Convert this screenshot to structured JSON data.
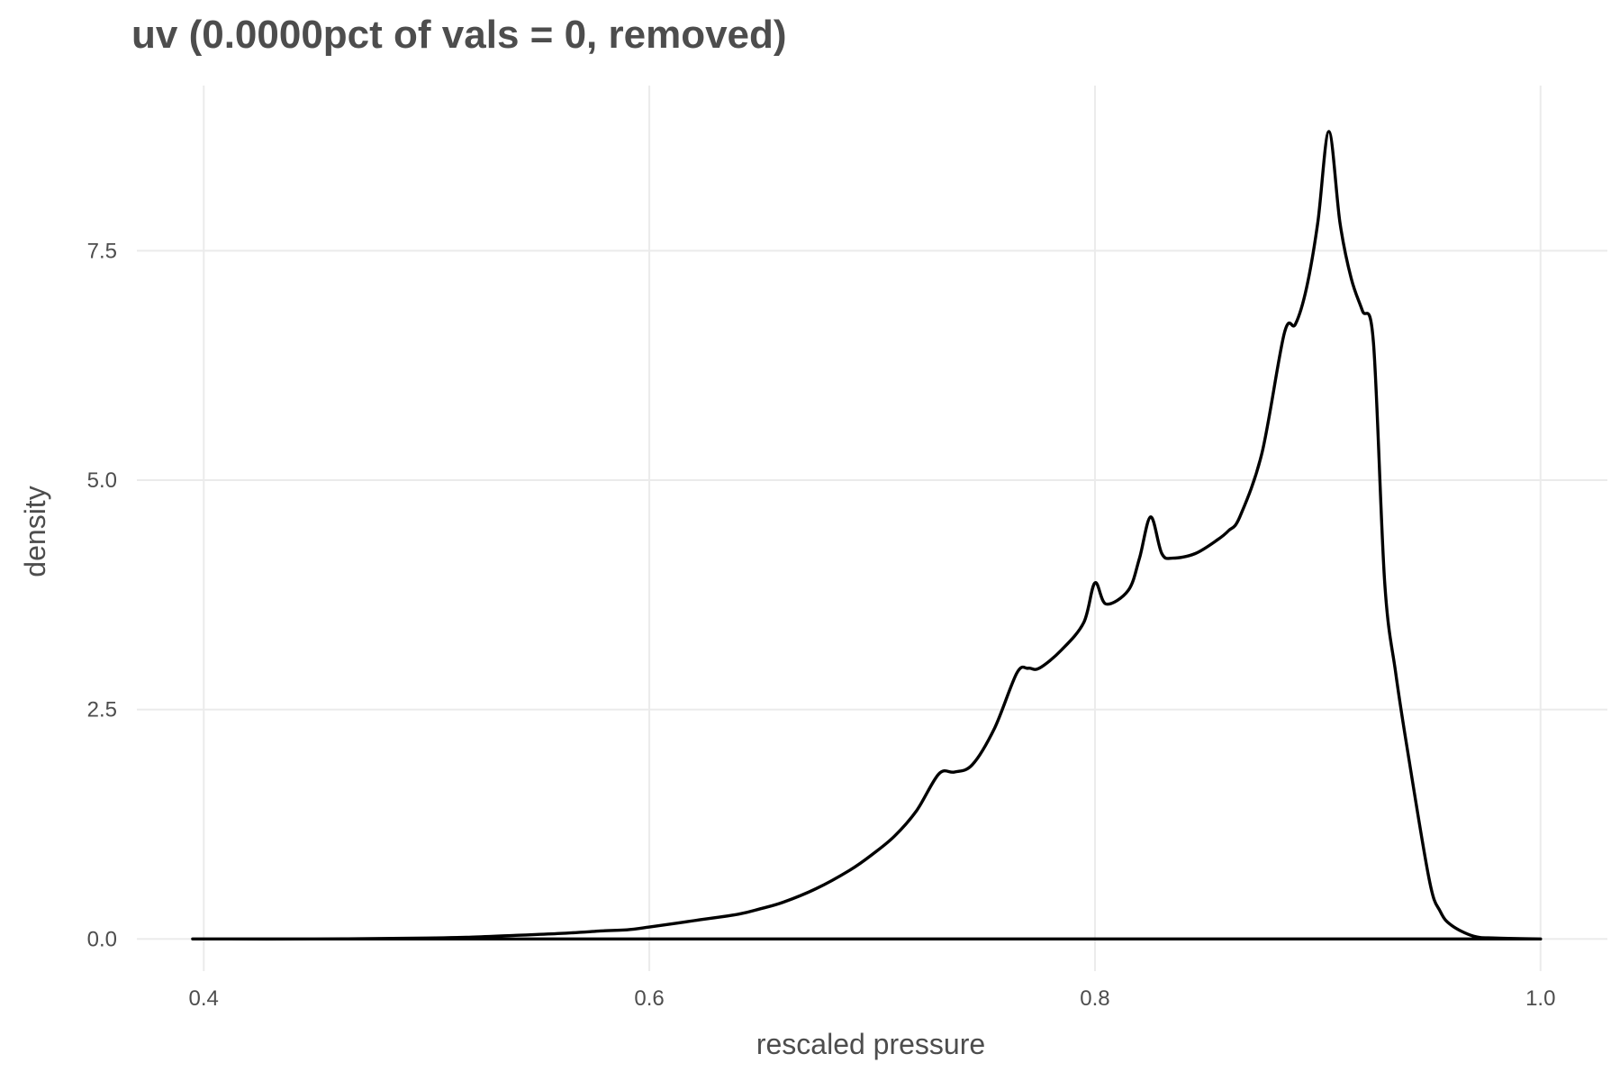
{
  "chart_data": {
    "type": "line",
    "title": "uv (0.0000pct of vals = 0, removed)",
    "xlabel": "rescaled pressure",
    "ylabel": "density",
    "xlim": [
      0.37,
      1.03
    ],
    "ylim": [
      -0.35,
      9.3
    ],
    "x_ticks": [
      0.4,
      0.6,
      0.8,
      1.0
    ],
    "x_tick_labels": [
      "0.4",
      "0.6",
      "0.8",
      "1.0"
    ],
    "y_ticks": [
      0.0,
      2.5,
      5.0,
      7.5
    ],
    "y_tick_labels": [
      "0.0",
      "2.5",
      "5.0",
      "7.5"
    ],
    "grid": true,
    "series": [
      {
        "line_color": "#000000",
        "closed_to_baseline": true,
        "x": [
          0.395,
          0.45,
          0.5,
          0.52,
          0.54,
          0.56,
          0.58,
          0.59,
          0.6,
          0.62,
          0.64,
          0.65,
          0.66,
          0.675,
          0.69,
          0.7,
          0.71,
          0.72,
          0.73,
          0.737,
          0.745,
          0.755,
          0.765,
          0.77,
          0.775,
          0.785,
          0.795,
          0.8,
          0.805,
          0.815,
          0.82,
          0.825,
          0.83,
          0.835,
          0.845,
          0.855,
          0.86,
          0.865,
          0.875,
          0.885,
          0.89,
          0.895,
          0.9,
          0.905,
          0.91,
          0.915,
          0.92,
          0.925,
          0.93,
          0.935,
          0.94,
          0.95,
          0.955,
          0.96,
          0.97,
          0.98,
          1.0
        ],
        "y": [
          0.0,
          0.0,
          0.01,
          0.02,
          0.04,
          0.06,
          0.09,
          0.1,
          0.13,
          0.2,
          0.27,
          0.33,
          0.4,
          0.55,
          0.75,
          0.92,
          1.12,
          1.4,
          1.8,
          1.82,
          1.9,
          2.3,
          2.9,
          2.95,
          2.95,
          3.15,
          3.45,
          3.88,
          3.65,
          3.8,
          4.15,
          4.6,
          4.2,
          4.15,
          4.2,
          4.35,
          4.45,
          4.6,
          5.3,
          6.6,
          6.7,
          7.1,
          7.8,
          8.8,
          7.8,
          7.2,
          6.85,
          6.5,
          3.9,
          2.9,
          2.1,
          0.65,
          0.3,
          0.15,
          0.03,
          0.01,
          0.0
        ]
      }
    ]
  }
}
